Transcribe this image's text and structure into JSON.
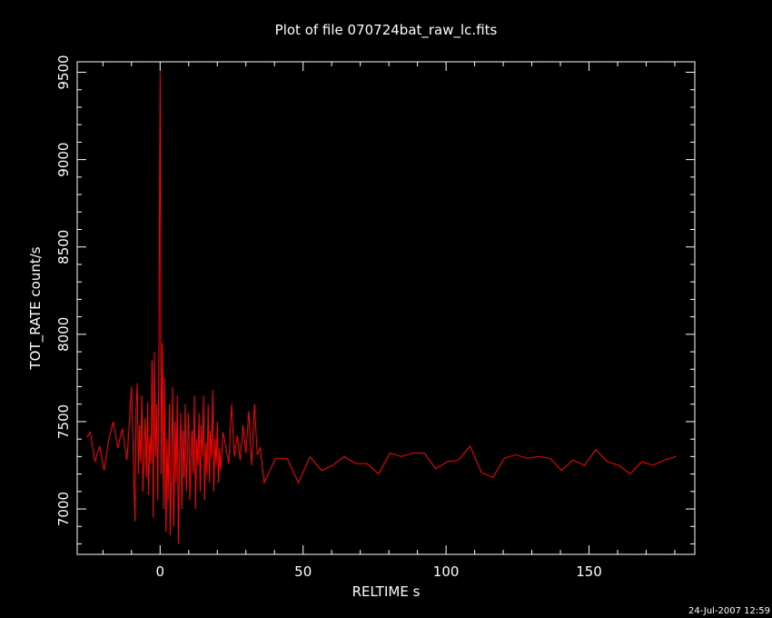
{
  "chart_data": {
    "type": "line",
    "title": "Plot of file 070724bat_raw_lc.fits",
    "xlabel": "RELTIME   s",
    "ylabel": "TOT_RATE   count/s",
    "xlim": [
      -29,
      187
    ],
    "ylim": [
      6740,
      9560
    ],
    "xticks": [
      0,
      50,
      100,
      150
    ],
    "yticks": [
      7000,
      7500,
      8000,
      8500,
      9000,
      9500
    ],
    "xtick_labels": [
      "0",
      "50",
      "100",
      "150"
    ],
    "ytick_labels": [
      "7000",
      "7500",
      "8000",
      "8500",
      "9000",
      "9500"
    ],
    "grid": false,
    "line_color": "#ff0000",
    "background": "#000000",
    "series": [
      {
        "x": [
          -25.6,
          -24.4,
          -22.8,
          -21.2,
          -19.6,
          -18.0,
          -16.4,
          -14.8,
          -13.2,
          -11.6,
          -10.0,
          -8.8,
          -8.4,
          -8.0,
          -7.6,
          -7.2,
          -6.8,
          -6.4,
          -6.0,
          -5.6,
          -5.2,
          -4.8,
          -4.4,
          -4.0,
          -3.6,
          -3.2,
          -2.8,
          -2.4,
          -2.0,
          -1.6,
          -1.2,
          -0.8,
          -0.4,
          0.0,
          0.4,
          0.8,
          1.2,
          1.6,
          2.0,
          2.4,
          2.8,
          3.2,
          3.6,
          4.0,
          4.4,
          4.8,
          5.2,
          5.6,
          6.0,
          6.4,
          6.8,
          7.2,
          7.6,
          8.0,
          8.4,
          8.8,
          9.2,
          9.6,
          10.0,
          10.4,
          10.8,
          11.2,
          11.6,
          12.0,
          12.4,
          12.8,
          13.2,
          13.6,
          14.0,
          14.4,
          14.8,
          15.2,
          15.6,
          16.0,
          16.4,
          16.8,
          17.2,
          17.6,
          18.0,
          18.4,
          18.8,
          19.2,
          19.6,
          20.0,
          20.4,
          20.8,
          21.2,
          22.0,
          23.0,
          24.0,
          25.0,
          26.0,
          27.0,
          28.0,
          29.0,
          30.0,
          31.0,
          32.0,
          33.0,
          34.0,
          35.0,
          36.4,
          40.4,
          44.4,
          48.4,
          52.4,
          56.4,
          60.4,
          64.4,
          68.4,
          72.4,
          76.4,
          80.4,
          84.4,
          88.4,
          92.4,
          96.4,
          100.4,
          104.4,
          108.4,
          112.4,
          116.4,
          120.4,
          124.4,
          128.4,
          132.4,
          136.4,
          140.4,
          144.4,
          148.4,
          152.4,
          156.4,
          160.4,
          164.4,
          168.4,
          172.4,
          176.4,
          180.4
        ],
        "y": [
          7410,
          7440,
          7270,
          7360,
          7220,
          7390,
          7500,
          7350,
          7460,
          7280,
          7700,
          6930,
          7580,
          7720,
          7200,
          7480,
          7270,
          7650,
          7100,
          7340,
          7520,
          7180,
          7610,
          7080,
          7420,
          7260,
          7850,
          6950,
          7900,
          7300,
          7600,
          7050,
          7950,
          9500,
          7200,
          7950,
          7000,
          7750,
          6870,
          7400,
          7050,
          7600,
          6850,
          7250,
          7700,
          6900,
          7500,
          7150,
          7650,
          6800,
          7300,
          7550,
          7000,
          7450,
          7180,
          7600,
          7100,
          7350,
          7550,
          7050,
          7300,
          7450,
          7200,
          7650,
          7000,
          7400,
          7250,
          7550,
          7100,
          7480,
          7300,
          7650,
          7050,
          7380,
          7200,
          7600,
          7150,
          7450,
          7300,
          7680,
          7100,
          7400,
          7250,
          7500,
          7150,
          7350,
          7220,
          7440,
          7350,
          7260,
          7600,
          7300,
          7420,
          7280,
          7480,
          7320,
          7560,
          7250,
          7600,
          7310,
          7350,
          7150,
          7290,
          7290,
          7150,
          7300,
          7220,
          7250,
          7300,
          7260,
          7260,
          7200,
          7320,
          7300,
          7320,
          7320,
          7230,
          7270,
          7280,
          7360,
          7210,
          7180,
          7290,
          7310,
          7290,
          7300,
          7290,
          7220,
          7280,
          7250,
          7340,
          7270,
          7250,
          7200,
          7270,
          7250,
          7280,
          7300
        ]
      }
    ]
  },
  "footer": {
    "timestamp": "24-Jul-2007 12:59"
  }
}
